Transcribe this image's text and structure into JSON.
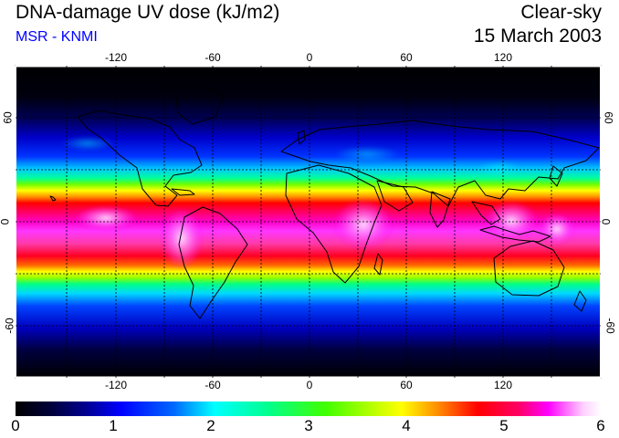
{
  "header": {
    "title": "DNA-damage UV dose (kJ/m2)",
    "subtitle": "MSR - KNMI",
    "condition": "Clear-sky",
    "date": "15 March 2003"
  },
  "map": {
    "longitude_ticks": [
      {
        "label": "-120",
        "value": -120
      },
      {
        "label": "-60",
        "value": -60
      },
      {
        "label": "0",
        "value": 0
      },
      {
        "label": "60",
        "value": 60
      },
      {
        "label": "120",
        "value": 120
      }
    ],
    "latitude_ticks": [
      {
        "label": "60",
        "value": 60
      },
      {
        "label": "0",
        "value": 0
      },
      {
        "label": "-60",
        "value": -60
      }
    ],
    "colors": {
      "background": "#000000",
      "grid": "#000000",
      "coast": "#000000"
    }
  },
  "colorbar": {
    "ticks": [
      {
        "label": "0",
        "value": 0
      },
      {
        "label": "1",
        "value": 1
      },
      {
        "label": "2",
        "value": 2
      },
      {
        "label": "3",
        "value": 3
      },
      {
        "label": "4",
        "value": 4
      },
      {
        "label": "5",
        "value": 5
      },
      {
        "label": "6",
        "value": 6
      }
    ],
    "min": 0,
    "max": 6
  }
}
